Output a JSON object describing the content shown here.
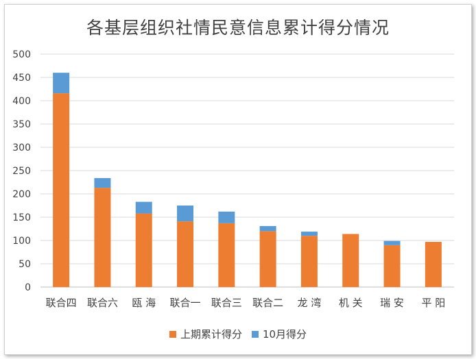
{
  "chart_data": {
    "type": "bar",
    "stacked": true,
    "title": "各基层组织社情民意信息累计得分情况",
    "categories": [
      "联合四",
      "联合六",
      "瓯 海",
      "联合一",
      "联合三",
      "联合二",
      "龙 湾",
      "机 关",
      "瑞 安",
      "平 阳"
    ],
    "series": [
      {
        "name": "上期累计得分",
        "color": "#ED7D31",
        "values": [
          416,
          213,
          158,
          141,
          137,
          120,
          110,
          114,
          90,
          97
        ]
      },
      {
        "name": "10月得分",
        "color": "#5B9BD5",
        "values": [
          44,
          21,
          25,
          34,
          25,
          11,
          9,
          0,
          9,
          0
        ]
      }
    ],
    "ylim": [
      0,
      500
    ],
    "yticks": [
      0,
      50,
      100,
      150,
      200,
      250,
      300,
      350,
      400,
      450,
      500
    ],
    "grid": true,
    "legend_position": "bottom",
    "xlabel": "",
    "ylabel": ""
  }
}
